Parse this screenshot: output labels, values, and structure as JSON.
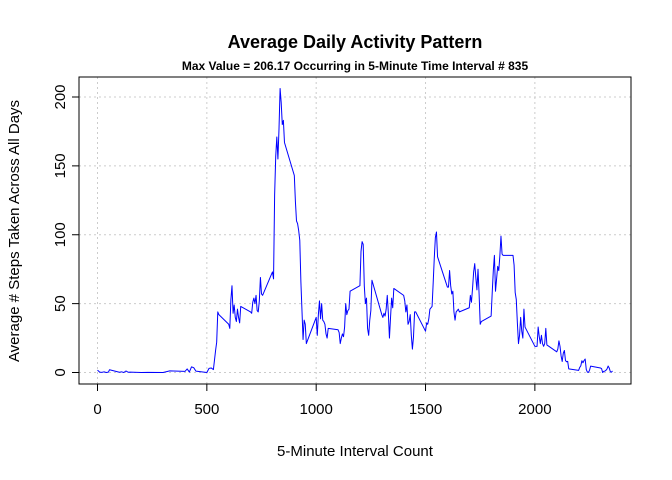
{
  "chart_data": {
    "type": "line",
    "title": "Average Daily Activity Pattern",
    "subtitle": "Max Value  =  206.17 Occurring in 5-Minute Time Interval #  835",
    "xlabel": "5-Minute Interval Count",
    "ylabel": "Average # Steps Taken Across All Days",
    "xlim": [
      0,
      2355
    ],
    "ylim": [
      0,
      206.17
    ],
    "x_ticks": [
      0,
      500,
      1000,
      1500,
      2000
    ],
    "y_ticks": [
      0,
      50,
      100,
      150,
      200
    ],
    "grid": true,
    "line_color": "#0000ff",
    "series": [
      {
        "points": [
          [
            0,
            1.7
          ],
          [
            10,
            0.3
          ],
          [
            20,
            0.1
          ],
          [
            30,
            0.5
          ],
          [
            40,
            0.0
          ],
          [
            50,
            0.3
          ],
          [
            55,
            2.0
          ],
          [
            100,
            0.2
          ],
          [
            110,
            0.5
          ],
          [
            120,
            0.0
          ],
          [
            130,
            1.1
          ],
          [
            140,
            0.2
          ],
          [
            150,
            0.3
          ],
          [
            200,
            0.0
          ],
          [
            230,
            0.1
          ],
          [
            300,
            0.0
          ],
          [
            330,
            1.2
          ],
          [
            400,
            0.8
          ],
          [
            410,
            2.6
          ],
          [
            420,
            0.3
          ],
          [
            430,
            4.1
          ],
          [
            440,
            3.5
          ],
          [
            450,
            1.0
          ],
          [
            500,
            0.0
          ],
          [
            510,
            3.0
          ],
          [
            520,
            3.3
          ],
          [
            530,
            2.1
          ],
          [
            540,
            16.0
          ],
          [
            545,
            22.0
          ],
          [
            550,
            44.0
          ],
          [
            555,
            42.0
          ],
          [
            600,
            35.0
          ],
          [
            605,
            32.0
          ],
          [
            610,
            53.0
          ],
          [
            615,
            63.0
          ],
          [
            620,
            43.0
          ],
          [
            625,
            49.0
          ],
          [
            630,
            40.0
          ],
          [
            635,
            37.0
          ],
          [
            640,
            46.0
          ],
          [
            645,
            40.0
          ],
          [
            650,
            36.0
          ],
          [
            655,
            48.0
          ],
          [
            700,
            44.0
          ],
          [
            705,
            43.0
          ],
          [
            710,
            51.0
          ],
          [
            715,
            54.0
          ],
          [
            720,
            50.0
          ],
          [
            725,
            56.0
          ],
          [
            730,
            45.0
          ],
          [
            735,
            44.0
          ],
          [
            740,
            52.0
          ],
          [
            745,
            69.0
          ],
          [
            750,
            57.0
          ],
          [
            755,
            56.0
          ],
          [
            800,
            73.0
          ],
          [
            805,
            68.0
          ],
          [
            810,
            129.0
          ],
          [
            815,
            157.0
          ],
          [
            820,
            171.0
          ],
          [
            825,
            155.0
          ],
          [
            830,
            177.0
          ],
          [
            835,
            206.17
          ],
          [
            840,
            196.0
          ],
          [
            845,
            180.0
          ],
          [
            850,
            183.0
          ],
          [
            855,
            167.0
          ],
          [
            900,
            143.0
          ],
          [
            905,
            124.0
          ],
          [
            910,
            110.0
          ],
          [
            915,
            108.0
          ],
          [
            920,
            103.0
          ],
          [
            925,
            96.0
          ],
          [
            930,
            66.0
          ],
          [
            935,
            45.0
          ],
          [
            940,
            24.0
          ],
          [
            945,
            38.0
          ],
          [
            950,
            35.0
          ],
          [
            955,
            21.0
          ],
          [
            1000,
            40.0
          ],
          [
            1005,
            27.0
          ],
          [
            1010,
            42.0
          ],
          [
            1015,
            52.0
          ],
          [
            1020,
            39.0
          ],
          [
            1025,
            50.0
          ],
          [
            1030,
            38.0
          ],
          [
            1035,
            37.0
          ],
          [
            1040,
            35.0
          ],
          [
            1045,
            28.0
          ],
          [
            1050,
            25.0
          ],
          [
            1055,
            32.0
          ],
          [
            1100,
            31.0
          ],
          [
            1105,
            29.0
          ],
          [
            1110,
            21.0
          ],
          [
            1115,
            25.0
          ],
          [
            1120,
            28.0
          ],
          [
            1125,
            26.0
          ],
          [
            1130,
            33.0
          ],
          [
            1135,
            50.0
          ],
          [
            1140,
            42.0
          ],
          [
            1145,
            45.0
          ],
          [
            1150,
            46.0
          ],
          [
            1155,
            59.0
          ],
          [
            1200,
            63.0
          ],
          [
            1205,
            88.0
          ],
          [
            1210,
            95.0
          ],
          [
            1215,
            93.0
          ],
          [
            1220,
            63.0
          ],
          [
            1225,
            50.0
          ],
          [
            1230,
            54.0
          ],
          [
            1235,
            32.0
          ],
          [
            1240,
            27.0
          ],
          [
            1245,
            38.0
          ],
          [
            1250,
            45.0
          ],
          [
            1255,
            67.0
          ],
          [
            1300,
            42.0
          ],
          [
            1305,
            40.0
          ],
          [
            1310,
            43.0
          ],
          [
            1315,
            41.0
          ],
          [
            1320,
            46.0
          ],
          [
            1325,
            56.0
          ],
          [
            1330,
            43.0
          ],
          [
            1335,
            25.0
          ],
          [
            1340,
            40.0
          ],
          [
            1345,
            54.0
          ],
          [
            1350,
            47.0
          ],
          [
            1355,
            61.0
          ],
          [
            1400,
            56.0
          ],
          [
            1405,
            52.0
          ],
          [
            1410,
            44.0
          ],
          [
            1415,
            49.0
          ],
          [
            1420,
            35.0
          ],
          [
            1425,
            37.0
          ],
          [
            1430,
            42.0
          ],
          [
            1435,
            27.0
          ],
          [
            1440,
            17.0
          ],
          [
            1445,
            26.0
          ],
          [
            1450,
            44.0
          ],
          [
            1455,
            44.0
          ],
          [
            1500,
            30.0
          ],
          [
            1505,
            36.0
          ],
          [
            1510,
            35.0
          ],
          [
            1515,
            39.0
          ],
          [
            1520,
            46.0
          ],
          [
            1525,
            47.0
          ],
          [
            1530,
            48.0
          ],
          [
            1535,
            65.0
          ],
          [
            1540,
            83.0
          ],
          [
            1545,
            98.0
          ],
          [
            1550,
            102.0
          ],
          [
            1555,
            84.0
          ],
          [
            1600,
            62.0
          ],
          [
            1605,
            62.0
          ],
          [
            1610,
            74.0
          ],
          [
            1615,
            63.0
          ],
          [
            1620,
            57.0
          ],
          [
            1625,
            59.0
          ],
          [
            1630,
            44.0
          ],
          [
            1635,
            38.0
          ],
          [
            1640,
            44.0
          ],
          [
            1645,
            45.0
          ],
          [
            1650,
            46.0
          ],
          [
            1655,
            44.0
          ],
          [
            1700,
            47.0
          ],
          [
            1705,
            56.0
          ],
          [
            1710,
            51.0
          ],
          [
            1715,
            61.0
          ],
          [
            1720,
            73.0
          ],
          [
            1725,
            79.0
          ],
          [
            1730,
            69.0
          ],
          [
            1735,
            60.0
          ],
          [
            1740,
            75.0
          ],
          [
            1745,
            57.0
          ],
          [
            1750,
            35.0
          ],
          [
            1755,
            37.0
          ],
          [
            1800,
            41.0
          ],
          [
            1805,
            58.0
          ],
          [
            1810,
            74.0
          ],
          [
            1815,
            85.0
          ],
          [
            1820,
            59.0
          ],
          [
            1825,
            68.0
          ],
          [
            1830,
            77.0
          ],
          [
            1835,
            74.0
          ],
          [
            1840,
            85.0
          ],
          [
            1845,
            99.0
          ],
          [
            1850,
            86.0
          ],
          [
            1855,
            85.0
          ],
          [
            1900,
            85.0
          ],
          [
            1905,
            78.0
          ],
          [
            1910,
            58.0
          ],
          [
            1915,
            53.0
          ],
          [
            1920,
            36.0
          ],
          [
            1925,
            21.0
          ],
          [
            1930,
            27.0
          ],
          [
            1935,
            40.0
          ],
          [
            1940,
            30.0
          ],
          [
            1945,
            25.0
          ],
          [
            1950,
            46.0
          ],
          [
            1955,
            33.0
          ],
          [
            2000,
            19.0
          ],
          [
            2005,
            19.0
          ],
          [
            2010,
            19.0
          ],
          [
            2015,
            33.0
          ],
          [
            2020,
            26.0
          ],
          [
            2025,
            21.0
          ],
          [
            2030,
            27.0
          ],
          [
            2035,
            21.0
          ],
          [
            2040,
            19.0
          ],
          [
            2045,
            21.0
          ],
          [
            2050,
            32.0
          ],
          [
            2055,
            20.0
          ],
          [
            2100,
            15.0
          ],
          [
            2105,
            17.0
          ],
          [
            2110,
            23.0
          ],
          [
            2115,
            19.0
          ],
          [
            2120,
            12.0
          ],
          [
            2125,
            8.0
          ],
          [
            2130,
            14.0
          ],
          [
            2135,
            16.0
          ],
          [
            2140,
            8.7
          ],
          [
            2145,
            7.8
          ],
          [
            2150,
            8.1
          ],
          [
            2155,
            2.6
          ],
          [
            2200,
            1.5
          ],
          [
            2205,
            3.7
          ],
          [
            2210,
            4.8
          ],
          [
            2215,
            8.5
          ],
          [
            2220,
            7.1
          ],
          [
            2225,
            8.7
          ],
          [
            2230,
            9.8
          ],
          [
            2235,
            2.2
          ],
          [
            2240,
            0.3
          ],
          [
            2245,
            0.1
          ],
          [
            2250,
            1.6
          ],
          [
            2255,
            4.6
          ],
          [
            2300,
            3.3
          ],
          [
            2305,
            2.8
          ],
          [
            2310,
            0.0
          ],
          [
            2315,
            0.8
          ],
          [
            2320,
            1.0
          ],
          [
            2325,
            1.6
          ],
          [
            2330,
            2.6
          ],
          [
            2335,
            4.7
          ],
          [
            2340,
            3.3
          ],
          [
            2345,
            0.6
          ],
          [
            2350,
            0.2
          ],
          [
            2355,
            1.1
          ]
        ]
      }
    ]
  }
}
